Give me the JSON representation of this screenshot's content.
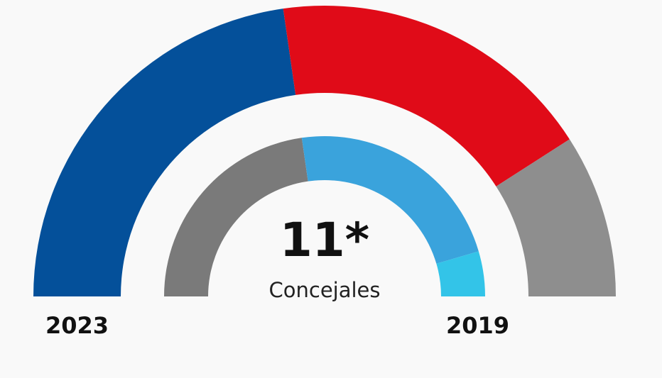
{
  "chart_data": {
    "type": "pie",
    "subtype": "parliament-semicircle",
    "total_label": "11*",
    "unit_label": "Concejales",
    "total_seats": 11,
    "series": [
      {
        "name": "2023",
        "ring": "outer",
        "slices": [
          {
            "name": "blue",
            "seats": 5,
            "color": "#04509a"
          },
          {
            "name": "red",
            "seats": 4,
            "color": "#e00b18"
          },
          {
            "name": "grey",
            "seats": 2,
            "color": "#8e8e8e"
          }
        ]
      },
      {
        "name": "2019",
        "ring": "inner",
        "slices": [
          {
            "name": "grey",
            "seats": 5,
            "color": "#7a7a7a"
          },
          {
            "name": "light-blue",
            "seats": 5,
            "color": "#3aa3dc"
          },
          {
            "name": "cyan",
            "seats": 1,
            "color": "#33c4e8"
          }
        ]
      }
    ]
  }
}
